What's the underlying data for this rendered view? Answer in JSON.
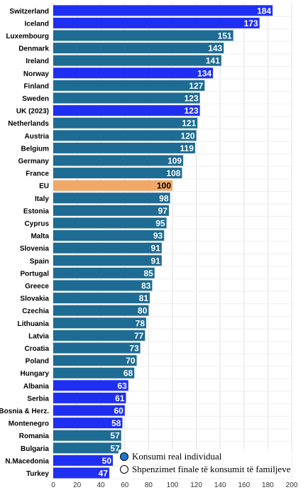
{
  "chart_data": {
    "type": "bar",
    "orientation": "horizontal",
    "title": "",
    "xlabel": "",
    "ylabel": "",
    "xlim": [
      0,
      200
    ],
    "x_ticks": [
      0,
      20,
      40,
      60,
      80,
      100,
      120,
      140,
      160,
      180,
      200
    ],
    "grid": true,
    "categories": [
      "Switzerland",
      "Iceland",
      "Luxembourg",
      "Denmark",
      "Ireland",
      "Norway",
      "Finland",
      "Sweden",
      "UK (2023)",
      "Netherlands",
      "Austria",
      "Belgium",
      "Germany",
      "France",
      "EU",
      "Italy",
      "Estonia",
      "Cyprus",
      "Malta",
      "Slovenia",
      "Spain",
      "Portugal",
      "Greece",
      "Slovakia",
      "Czechia",
      "Lithuania",
      "Latvia",
      "Croatia",
      "Poland",
      "Hungary",
      "Albania",
      "Serbia",
      "Bosnia & Herz.",
      "Montenegro",
      "Romania",
      "Bulgaria",
      "N.Macedonia",
      "Turkey"
    ],
    "values": [
      184,
      173,
      151,
      143,
      141,
      134,
      127,
      123,
      123,
      121,
      120,
      119,
      109,
      108,
      100,
      98,
      97,
      95,
      93,
      91,
      91,
      85,
      83,
      81,
      80,
      78,
      77,
      73,
      70,
      68,
      63,
      61,
      60,
      58,
      57,
      57,
      50,
      47
    ],
    "bar_groups": [
      "non-eu",
      "non-eu",
      "eu",
      "eu",
      "eu",
      "non-eu",
      "eu",
      "eu",
      "non-eu",
      "eu",
      "eu",
      "eu",
      "eu",
      "eu",
      "eu-average",
      "eu",
      "eu",
      "eu",
      "eu",
      "eu",
      "eu",
      "eu",
      "eu",
      "eu",
      "eu",
      "eu",
      "eu",
      "eu",
      "eu",
      "eu",
      "non-eu",
      "non-eu",
      "non-eu",
      "non-eu",
      "eu",
      "eu",
      "non-eu",
      "non-eu"
    ],
    "colors": {
      "non-eu": "#1f2ff2",
      "eu": "#1e6b93",
      "eu-average": "#f0a868",
      "grid": "#e2e2e2",
      "label_light": "#ffffff",
      "label_dark": "#000000"
    },
    "legend": {
      "placement": "bottom-right",
      "items": [
        {
          "label": "Konsumi real individual",
          "color": "#1a78d2",
          "filled": true
        },
        {
          "label": "Shpenzimet finale të konsumit të familjeve",
          "color": "#ffffff",
          "filled": false
        }
      ]
    }
  }
}
